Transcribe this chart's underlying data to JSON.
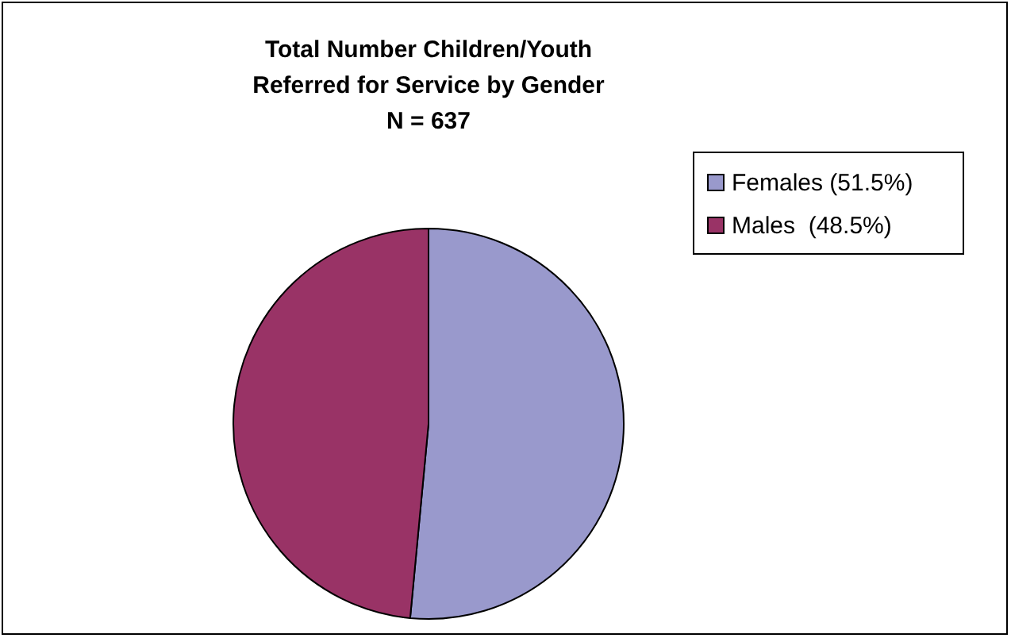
{
  "chart_data": {
    "type": "pie",
    "title": "Total Number Children/Youth\nReferred for Service by Gender",
    "subtitle": "N = 637",
    "categories": [
      "Females (51.5%)",
      "Males  (48.5%)"
    ],
    "values": [
      51.5,
      48.5
    ],
    "colors": [
      "#9999cc",
      "#993366"
    ],
    "legend": "right"
  }
}
